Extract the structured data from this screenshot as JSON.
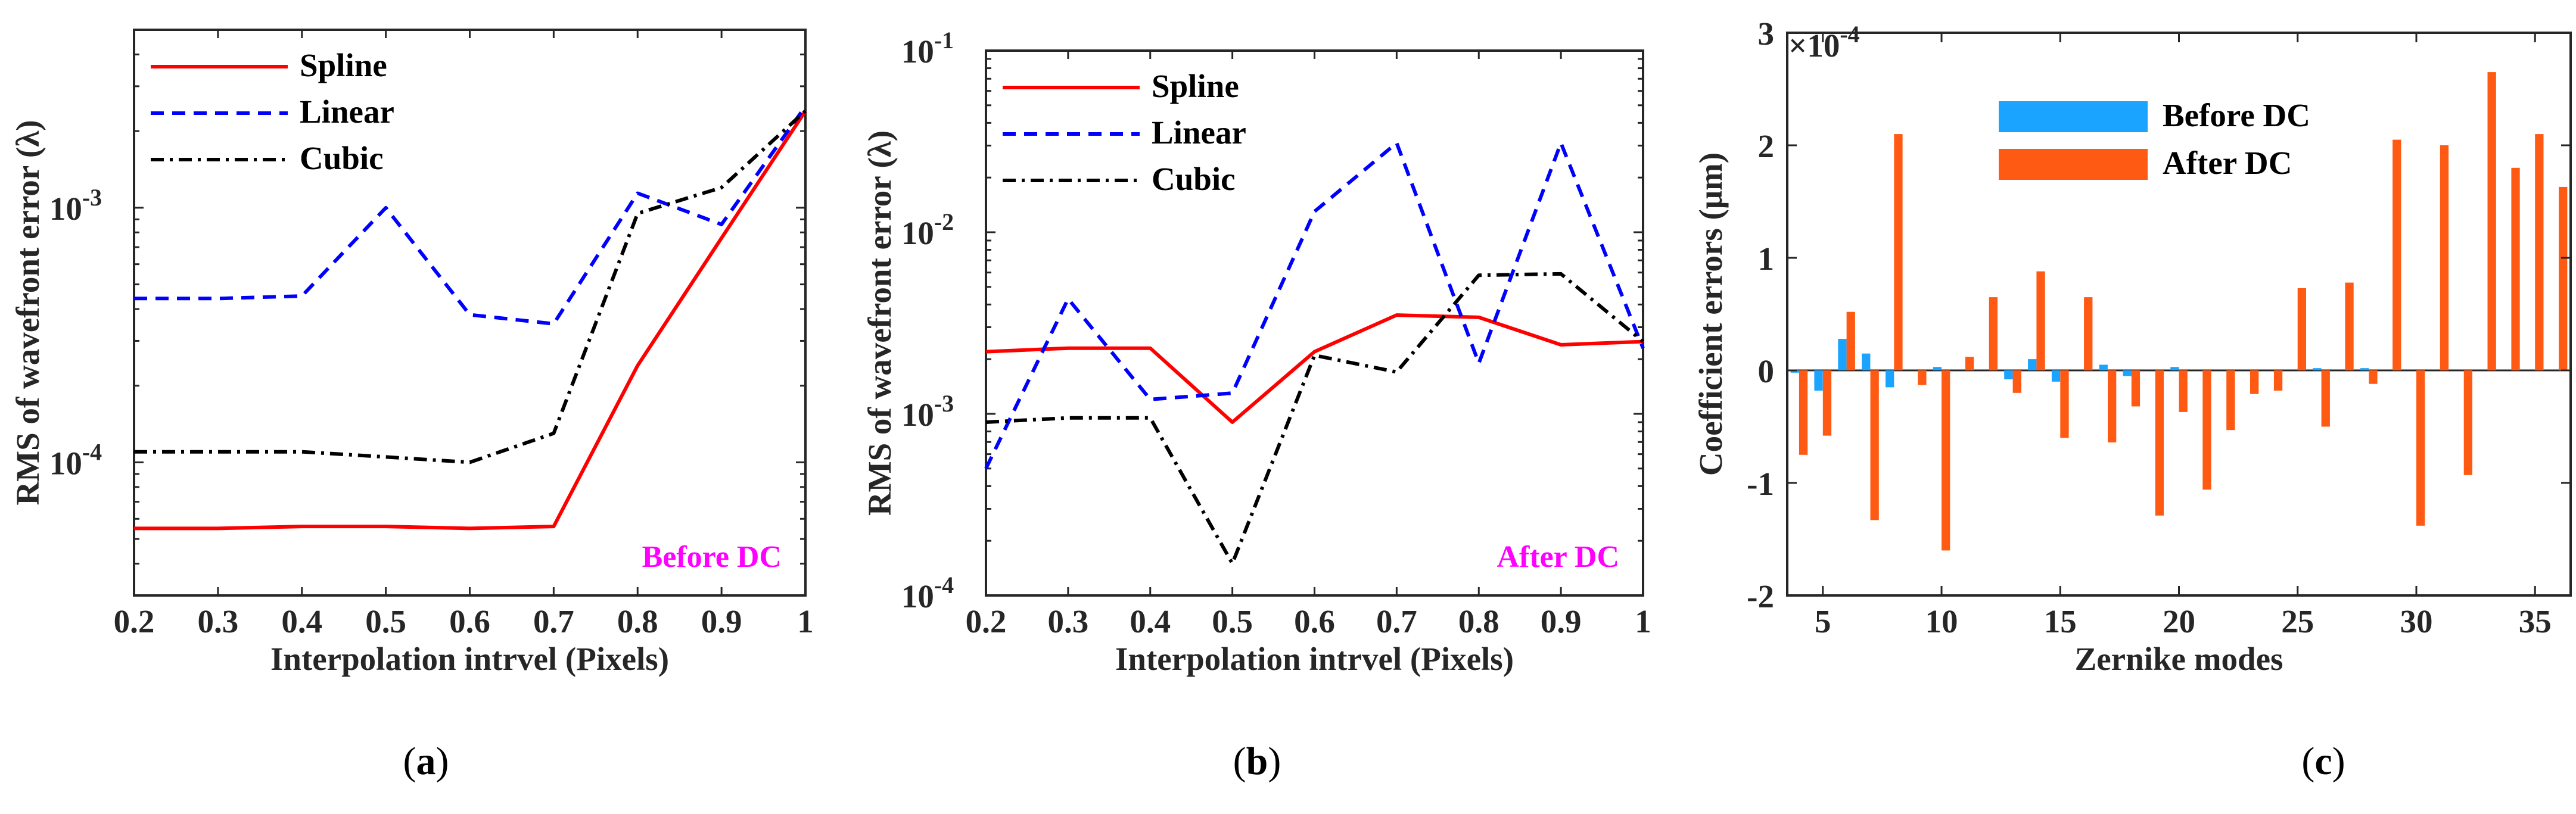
{
  "chart_data": [
    {
      "id": "a",
      "type": "line",
      "yscale": "log",
      "xlabel": "Interpolation intrvel (Pixels)",
      "ylabel": "RMS of wavefront error (λ)",
      "annotation": "Before DC",
      "caption": "(a)",
      "xlim": [
        0.2,
        1.0
      ],
      "ylim": [
        3e-05,
        0.005
      ],
      "xticks": [
        "0.2",
        "0.3",
        "0.4",
        "0.5",
        "0.6",
        "0.7",
        "0.8",
        "0.9",
        "1"
      ],
      "yticks": [
        {
          "value": 0.0001,
          "base": "10",
          "exp": "-4"
        },
        {
          "value": 0.001,
          "base": "10",
          "exp": "-3"
        }
      ],
      "x": [
        0.2,
        0.3,
        0.4,
        0.5,
        0.6,
        0.7,
        0.8,
        0.9,
        1.0
      ],
      "legend": "top-left",
      "series": [
        {
          "name": "Spline",
          "color": "#ff0000",
          "dash": "solid",
          "values": [
            5.5e-05,
            5.5e-05,
            5.6e-05,
            5.6e-05,
            5.5e-05,
            5.6e-05,
            0.00024,
            0.00076,
            0.0024
          ]
        },
        {
          "name": "Linear",
          "color": "#0000ff",
          "dash": "dashed",
          "values": [
            0.00044,
            0.00044,
            0.00045,
            0.001,
            0.00038,
            0.00035,
            0.00114,
            0.00086,
            0.0025
          ]
        },
        {
          "name": "Cubic",
          "color": "#000000",
          "dash": "dashdot",
          "values": [
            0.00011,
            0.00011,
            0.00011,
            0.000105,
            0.0001,
            0.00013,
            0.00095,
            0.0012,
            0.0024
          ]
        }
      ]
    },
    {
      "id": "b",
      "type": "line",
      "yscale": "log",
      "xlabel": "Interpolation intrvel (Pixels)",
      "ylabel": "RMS of wavefront error (λ)",
      "annotation": "After DC",
      "caption": "(b)",
      "xlim": [
        0.2,
        1.0
      ],
      "ylim": [
        0.0001,
        0.1
      ],
      "xticks": [
        "0.2",
        "0.3",
        "0.4",
        "0.5",
        "0.6",
        "0.7",
        "0.8",
        "0.9",
        "1"
      ],
      "yticks": [
        {
          "value": 0.0001,
          "base": "10",
          "exp": "-4"
        },
        {
          "value": 0.001,
          "base": "10",
          "exp": "-3"
        },
        {
          "value": 0.01,
          "base": "10",
          "exp": "-2"
        },
        {
          "value": 0.1,
          "base": "10",
          "exp": "-1"
        }
      ],
      "x": [
        0.2,
        0.3,
        0.4,
        0.5,
        0.6,
        0.7,
        0.8,
        0.9,
        1.0
      ],
      "legend": "top-left",
      "series": [
        {
          "name": "Spline",
          "color": "#ff0000",
          "dash": "solid",
          "values": [
            0.0022,
            0.0023,
            0.0023,
            0.0009,
            0.0022,
            0.0035,
            0.0034,
            0.0024,
            0.0025
          ]
        },
        {
          "name": "Linear",
          "color": "#0000ff",
          "dash": "dashed",
          "values": [
            0.0005,
            0.0043,
            0.0012,
            0.0013,
            0.013,
            0.031,
            0.0019,
            0.031,
            0.0023
          ]
        },
        {
          "name": "Cubic",
          "color": "#000000",
          "dash": "dashdot",
          "values": [
            0.0009,
            0.00095,
            0.00095,
            0.00015,
            0.0021,
            0.0017,
            0.0058,
            0.0059,
            0.0025
          ]
        }
      ]
    },
    {
      "id": "c",
      "type": "bar",
      "xlabel": "Zernike modes",
      "ylabel": "Coefficient errors (μm)",
      "caption": "(c)",
      "y_multiplier": {
        "base": "×10",
        "exp": "-4"
      },
      "xlim": [
        3.5,
        36.5
      ],
      "ylim": [
        -2,
        3
      ],
      "xticks": [
        "5",
        "10",
        "15",
        "20",
        "25",
        "30",
        "35"
      ],
      "yticks": [
        "-2",
        "-1",
        "0",
        "1",
        "2",
        "3"
      ],
      "legend": "top-center",
      "categories": [
        4,
        5,
        6,
        7,
        8,
        9,
        10,
        11,
        12,
        13,
        14,
        15,
        16,
        17,
        18,
        19,
        20,
        21,
        22,
        23,
        24,
        25,
        26,
        27,
        28,
        29,
        30,
        31,
        32,
        33,
        34,
        35,
        36
      ],
      "series": [
        {
          "name": "Before DC",
          "color": "#1aa3ff",
          "values": [
            -0.02,
            -0.18,
            0.28,
            0.15,
            -0.15,
            0.0,
            0.03,
            0.0,
            0.0,
            -0.08,
            0.1,
            -0.1,
            0.0,
            0.05,
            -0.05,
            0.0,
            0.03,
            0.0,
            0.0,
            0.0,
            0.0,
            0.0,
            0.02,
            0.0,
            0.02,
            0.0,
            0.0,
            0.0,
            0.0,
            0.0,
            0.0,
            0.0,
            0.0
          ]
        },
        {
          "name": "After DC",
          "color": "#ff5a14",
          "values": [
            -0.75,
            -0.58,
            0.52,
            -1.33,
            2.1,
            -0.13,
            -1.6,
            0.12,
            0.65,
            -0.2,
            0.88,
            -0.6,
            0.65,
            -0.64,
            -0.32,
            -1.29,
            -0.37,
            -1.06,
            -0.53,
            -0.21,
            -0.18,
            0.73,
            -0.5,
            0.78,
            -0.12,
            2.05,
            -1.38,
            2.0,
            -0.93,
            2.65,
            1.8,
            2.1,
            1.63
          ]
        }
      ]
    }
  ]
}
